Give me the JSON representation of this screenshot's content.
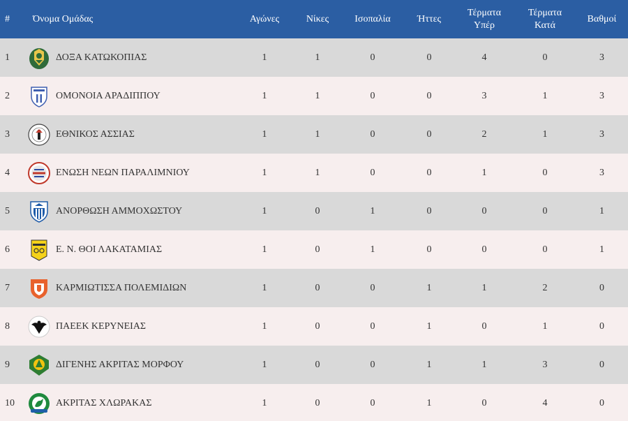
{
  "table": {
    "headers": {
      "rank": "#",
      "team": "Όνομα Ομάδας",
      "played": "Αγώνες",
      "wins": "Νίκες",
      "draws": "Ισοπαλία",
      "losses": "Ήττες",
      "goals_for_1": "Τέρματα",
      "goals_for_2": "Υπέρ",
      "goals_against_1": "Τέρματα",
      "goals_against_2": "Κατά",
      "points": "Βαθμοί"
    },
    "rows": [
      {
        "rank": "1",
        "team": "ΔΟΞΑ ΚΑΤΩΚΟΠΙΑΣ",
        "played": "1",
        "wins": "1",
        "draws": "0",
        "losses": "0",
        "gf": "4",
        "ga": "0",
        "pts": "3",
        "logo": "doxa-katokopias-crest"
      },
      {
        "rank": "2",
        "team": "ΟΜΟΝΟΙΑ ΑΡΑΔΙΠΠΟΥ",
        "played": "1",
        "wins": "1",
        "draws": "0",
        "losses": "0",
        "gf": "3",
        "ga": "1",
        "pts": "3",
        "logo": "omonia-aradippou-crest"
      },
      {
        "rank": "3",
        "team": "ΕΘΝΙΚΟΣ ΑΣΣΙΑΣ",
        "played": "1",
        "wins": "1",
        "draws": "0",
        "losses": "0",
        "gf": "2",
        "ga": "1",
        "pts": "3",
        "logo": "ethnikos-assias-crest"
      },
      {
        "rank": "4",
        "team": "ΕΝΩΣΗ ΝΕΩΝ ΠΑΡΑΛΙΜΝΙΟΥ",
        "played": "1",
        "wins": "1",
        "draws": "0",
        "losses": "0",
        "gf": "1",
        "ga": "0",
        "pts": "3",
        "logo": "enp-crest"
      },
      {
        "rank": "5",
        "team": "ΑΝΟΡΘΩΣΗ ΑΜΜΟΧΩΣΤΟΥ",
        "played": "1",
        "wins": "0",
        "draws": "1",
        "losses": "0",
        "gf": "0",
        "ga": "0",
        "pts": "1",
        "logo": "anorthosis-crest"
      },
      {
        "rank": "6",
        "team": "Ε. Ν. ΘΟΙ ΛΑΚΑΤΑΜΙΑΣ",
        "played": "1",
        "wins": "0",
        "draws": "1",
        "losses": "0",
        "gf": "0",
        "ga": "0",
        "pts": "1",
        "logo": "thoi-lakatamias-crest"
      },
      {
        "rank": "7",
        "team": "ΚΑΡΜΙΩΤΙΣΣΑ ΠΟΛΕΜΙΔΙΩΝ",
        "played": "1",
        "wins": "0",
        "draws": "0",
        "losses": "1",
        "gf": "1",
        "ga": "2",
        "pts": "0",
        "logo": "karmiotissa-crest"
      },
      {
        "rank": "8",
        "team": "ΠΑΕΕΚ ΚΕΡΥΝΕΙΑΣ",
        "played": "1",
        "wins": "0",
        "draws": "0",
        "losses": "1",
        "gf": "0",
        "ga": "1",
        "pts": "0",
        "logo": "paeek-crest"
      },
      {
        "rank": "9",
        "team": "ΔΙΓΕΝΗΣ ΑΚΡΙΤΑΣ ΜΟΡΦΟΥ",
        "played": "1",
        "wins": "0",
        "draws": "0",
        "losses": "1",
        "gf": "1",
        "ga": "3",
        "pts": "0",
        "logo": "digenis-morfou-crest"
      },
      {
        "rank": "10",
        "team": "ΑΚΡΙΤΑΣ ΧΛΩΡΑΚΑΣ",
        "played": "1",
        "wins": "0",
        "draws": "0",
        "losses": "1",
        "gf": "0",
        "ga": "4",
        "pts": "0",
        "logo": "akritas-chlorakas-crest"
      }
    ]
  },
  "colors": {
    "header_bg": "#2b5ea3",
    "row_odd": "#d9d9d9",
    "row_even": "#f7eeee"
  }
}
